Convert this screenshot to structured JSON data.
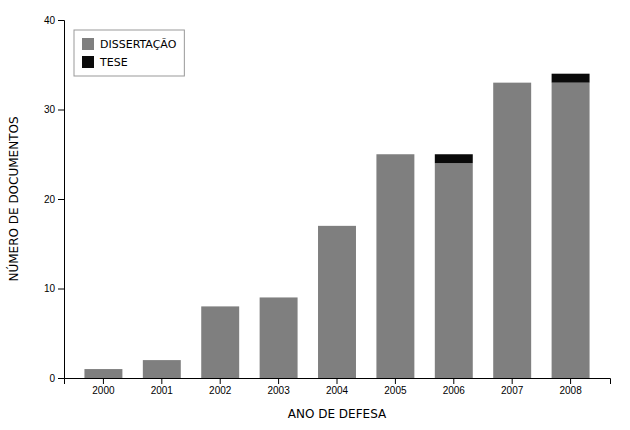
{
  "chart_data": {
    "type": "bar",
    "stacked": true,
    "categories": [
      "2000",
      "2001",
      "2002",
      "2003",
      "2004",
      "2005",
      "2006",
      "2007",
      "2008"
    ],
    "series": [
      {
        "name": "DISSERTAÇÃO",
        "color": "#7f7f7f",
        "values": [
          1,
          2,
          8,
          9,
          17,
          25,
          24,
          33,
          33
        ]
      },
      {
        "name": "TESE",
        "color": "#0a0a0a",
        "values": [
          0,
          0,
          0,
          0,
          0,
          0,
          1,
          0,
          1
        ]
      }
    ],
    "xlabel": "ANO DE DEFESA",
    "ylabel": "NÚMERO DE DOCUMENTOS",
    "ylim": [
      0,
      40
    ],
    "yticks": [
      0,
      10,
      20,
      30,
      40
    ],
    "grid": false,
    "legend": "upper left"
  }
}
